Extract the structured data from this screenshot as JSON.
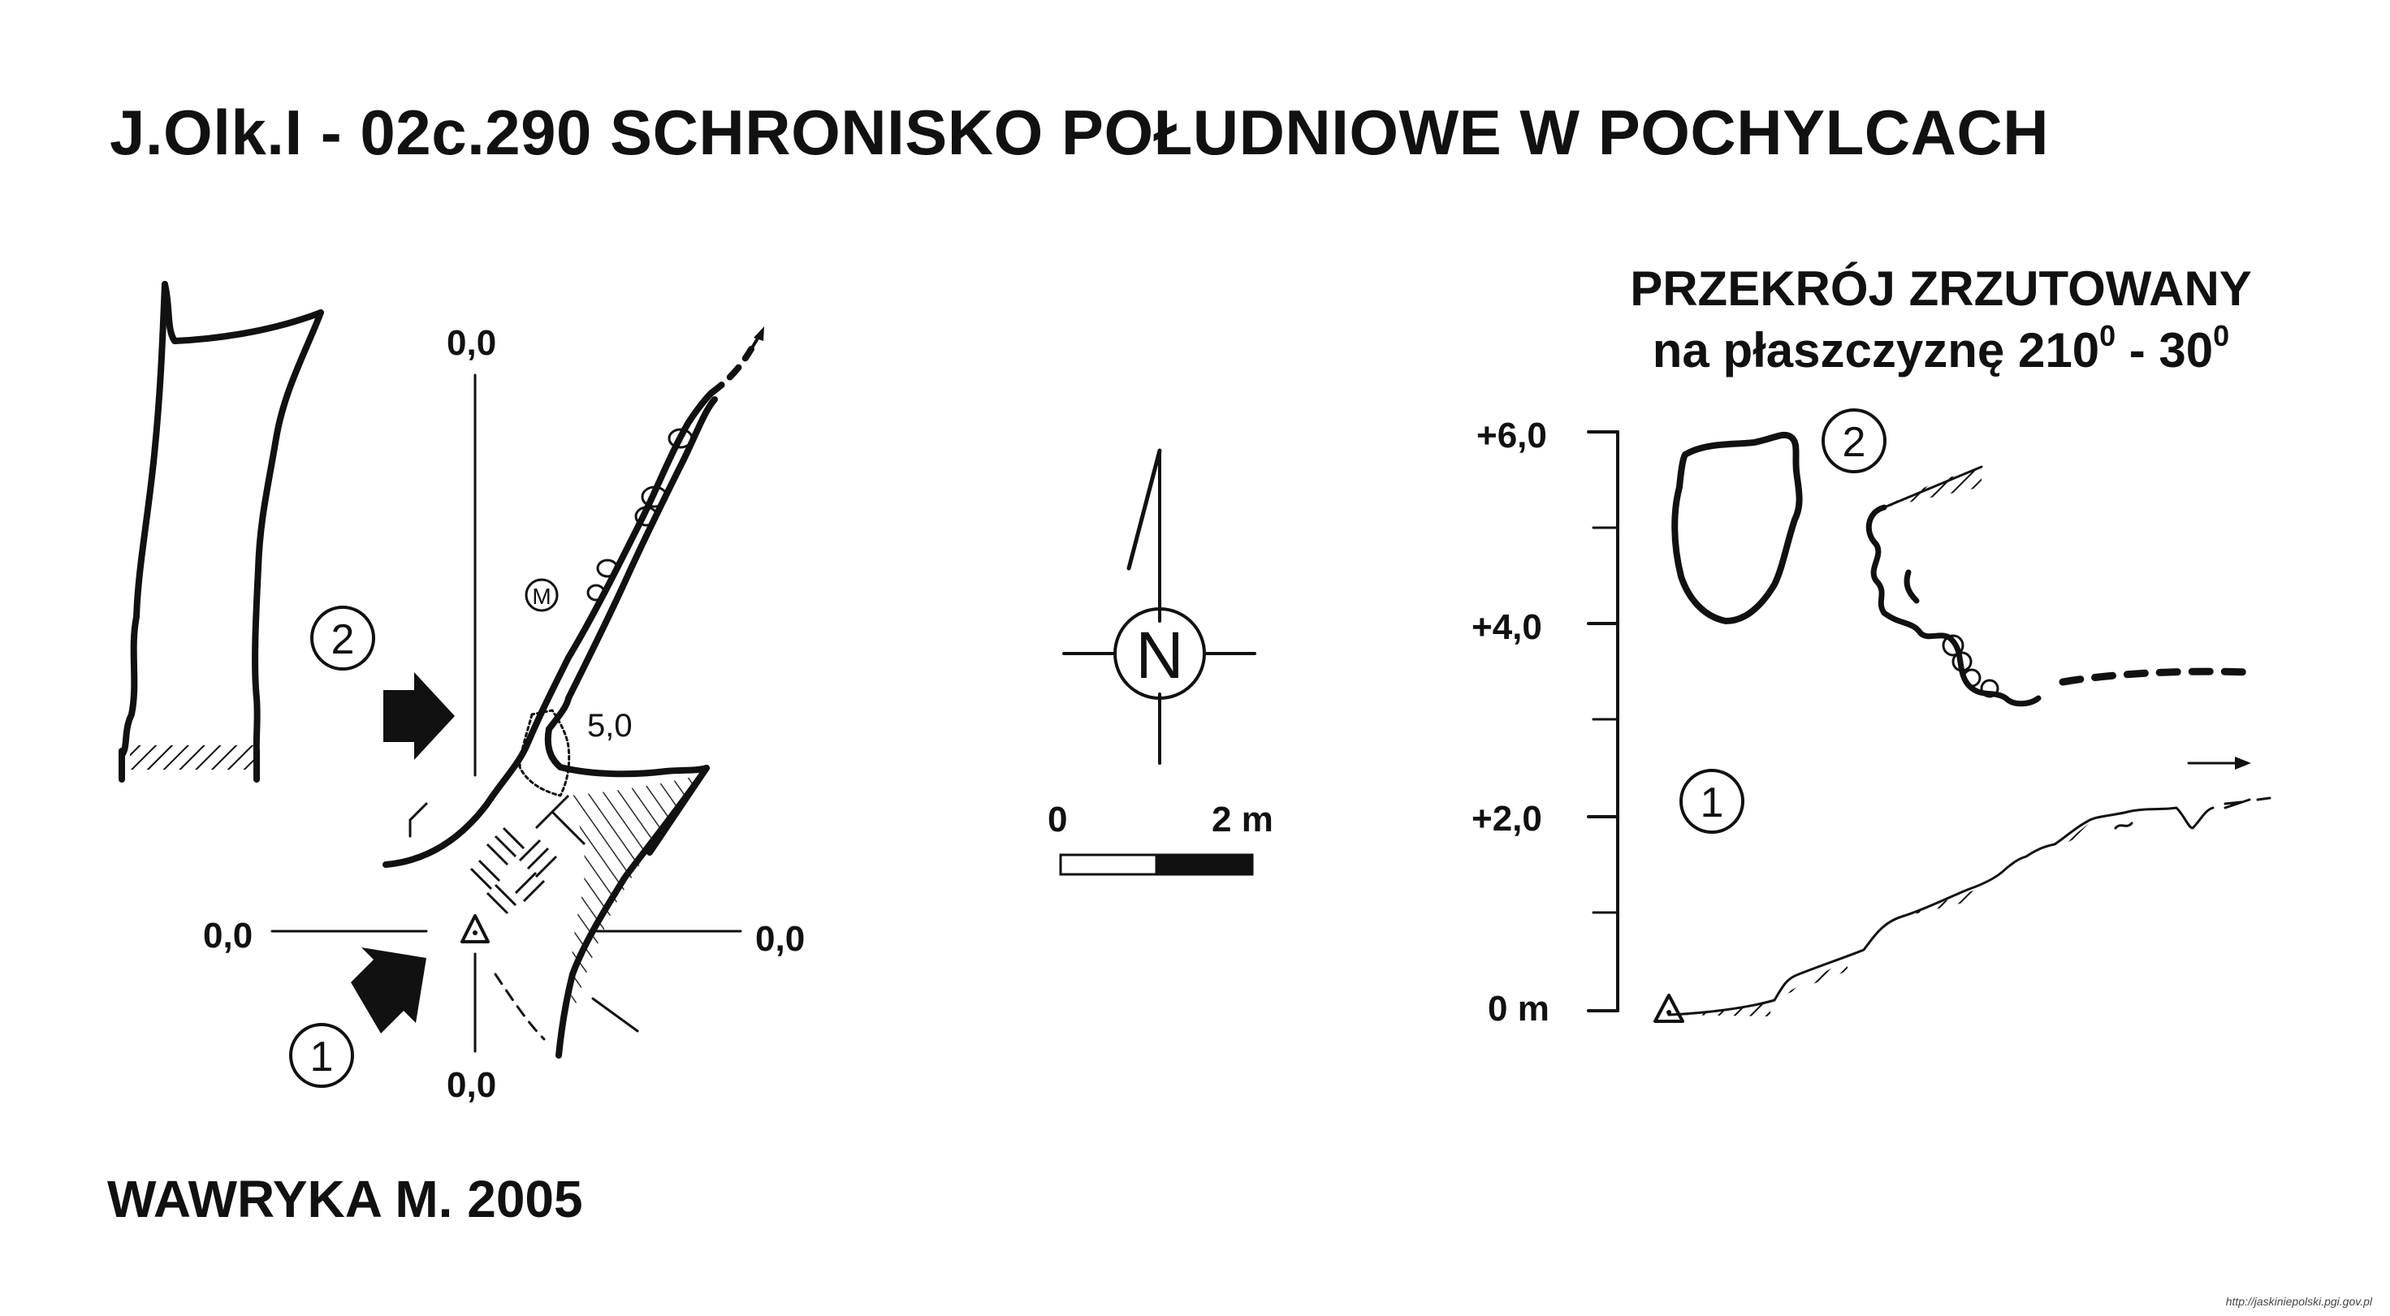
{
  "title": "J.Olk.I - 02c.290  SCHRONISKO POŁUDNIOWE W POCHYLCACH",
  "author": "WAWRYKA M. 2005",
  "source_url": "http://jaskiniepolski.pgi.gov.pl",
  "plan": {
    "axis_top": "0,0",
    "axis_bottom": "0,0",
    "axis_left": "0,0",
    "axis_right": "0,0",
    "depth_label": "5,0",
    "marker_m": "M",
    "entrance_1": "1",
    "entrance_2": "2"
  },
  "compass": {
    "north": "N"
  },
  "scale_bar": {
    "start": "0",
    "end": "2 m"
  },
  "section": {
    "title_line1": "PRZEKRÓJ ZRZUTOWANY",
    "title_line2_a": "na płaszczyznę 210",
    "title_line2_sup1": "0",
    "title_line2_b": " - 30",
    "title_line2_sup2": "0",
    "ticks": [
      "+6,0",
      "+4,0",
      "+2,0",
      "0 m"
    ],
    "entrance_1": "1",
    "entrance_2": "2"
  },
  "colors": {
    "ink": "#111111",
    "background": "#ffffff"
  }
}
